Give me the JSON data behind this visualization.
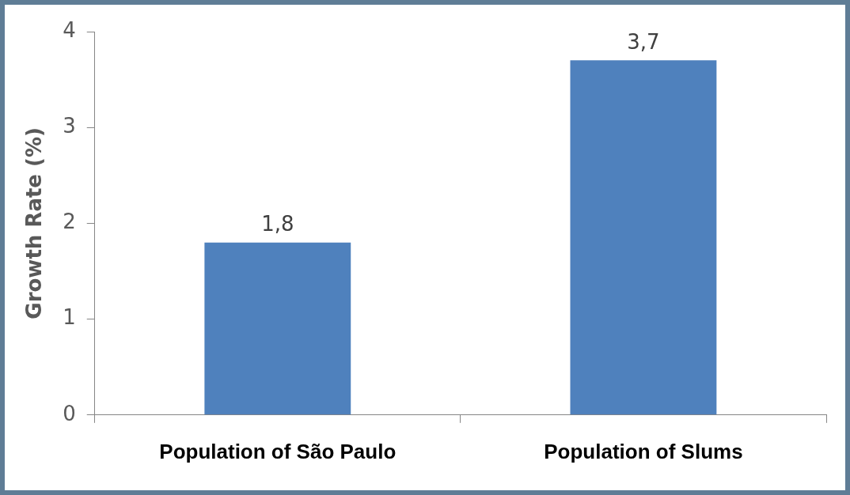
{
  "chart_data": {
    "type": "bar",
    "ylabel": "Growth Rate (%)",
    "categories": [
      "Population of São Paulo",
      "Population of Slums"
    ],
    "values": [
      1.8,
      3.7
    ],
    "value_labels": [
      "1,8",
      "3,7"
    ],
    "color": "#4f81bd",
    "ylim": [
      0,
      4
    ],
    "yticks": [
      0,
      1,
      2,
      3,
      4
    ],
    "grid": false,
    "legend": false
  }
}
